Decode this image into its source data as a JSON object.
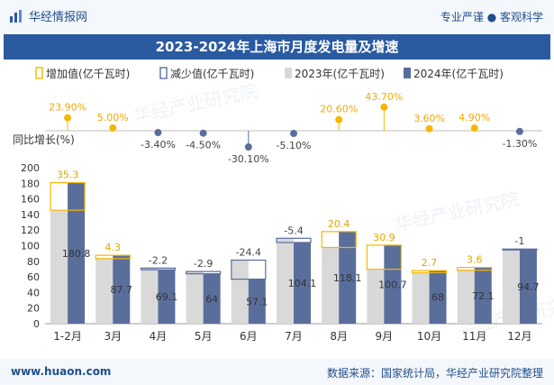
{
  "header": {
    "brand": "华经情报网",
    "slogan_left": "专业严谨",
    "slogan_right": "客观科学"
  },
  "footer": {
    "site": "www.huaon.com",
    "source": "数据来源：国家统计局，华经产业研究院整理"
  },
  "watermark": "华经产业研究院",
  "colors": {
    "accent": "#2a5aa0",
    "bar2023": "#d9d9d9",
    "bar2024": "#5a6e9c",
    "increase": "#f5b800",
    "decrease": "#5a6e9c"
  },
  "chart_data": {
    "type": "bar",
    "title": "2023-2024年上海市月度发电量及增速",
    "legend": [
      "增加值(亿千瓦时)",
      "减少值(亿千瓦时)",
      "2023年(亿千瓦时)",
      "2024年(亿千瓦时)"
    ],
    "ylabel": "同比增长(%)",
    "ylim": [
      0,
      200
    ],
    "yticks": [
      0,
      20,
      40,
      60,
      80,
      100,
      120,
      140,
      160,
      180,
      200
    ],
    "categories": [
      "1-2月",
      "3月",
      "4月",
      "5月",
      "6月",
      "7月",
      "8月",
      "9月",
      "10月",
      "11月",
      "12月"
    ],
    "series": [
      {
        "name": "2023年(亿千瓦时)",
        "values": [
          145.5,
          83.4,
          71.3,
          66.9,
          81.5,
          109.5,
          97.7,
          69.8,
          65.3,
          68.5,
          95.7
        ]
      },
      {
        "name": "2024年(亿千瓦时)",
        "values": [
          180.8,
          87.7,
          69.1,
          64.0,
          57.1,
          104.1,
          118.1,
          100.7,
          68.0,
          72.1,
          94.7
        ]
      }
    ],
    "diff_values": [
      35.3,
      4.3,
      -2.2,
      -2.9,
      -24.4,
      -5.4,
      20.4,
      30.9,
      2.7,
      3.6,
      -1
    ],
    "growth_labels": [
      "23.90%",
      "5.00%",
      "-3.40%",
      "-4.50%",
      "-30.10%",
      "-5.10%",
      "20.60%",
      "43.70%",
      "3.60%",
      "4.90%",
      "-1.30%"
    ],
    "growth_values": [
      23.9,
      5.0,
      -3.4,
      -4.5,
      -30.1,
      -5.1,
      20.6,
      43.7,
      3.6,
      4.9,
      -1.3
    ]
  }
}
